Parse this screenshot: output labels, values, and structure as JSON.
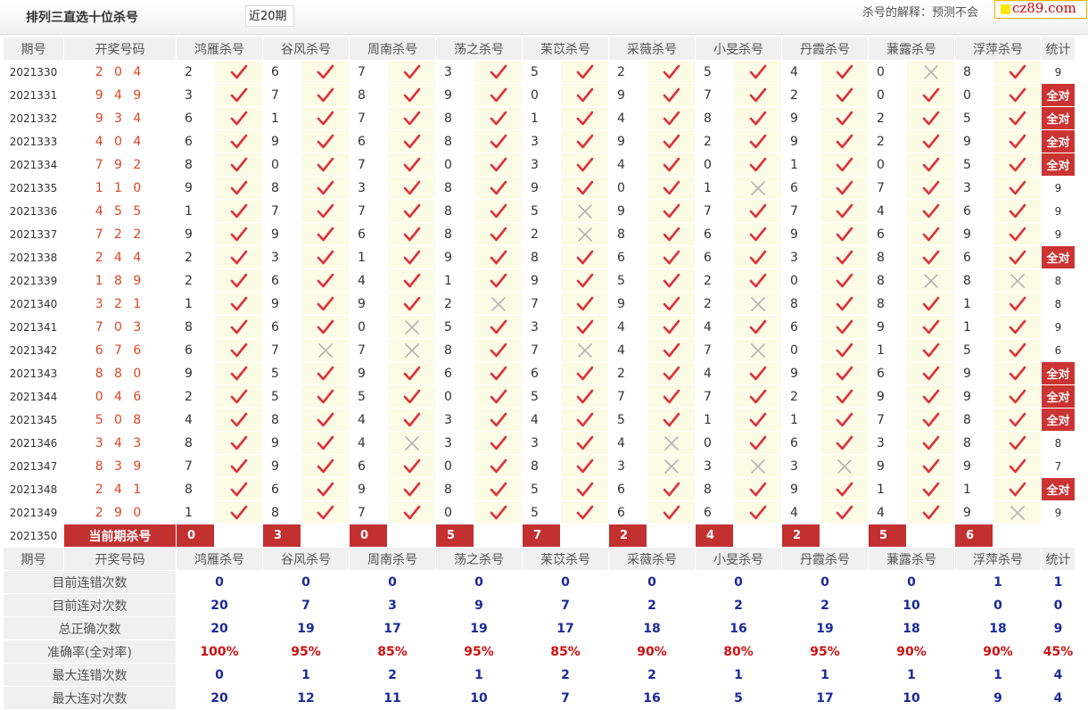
{
  "header": {
    "title": "排列三直选十位杀号",
    "period_select": "近20期",
    "explain": "杀号的解释：预测不会",
    "logo": "cz89.com"
  },
  "columns": {
    "issue": "期号",
    "draw": "开奖号码",
    "experts": [
      "鸿雁杀号",
      "谷风杀号",
      "周南杀号",
      "荡之杀号",
      "苿苡杀号",
      "采薇杀号",
      "小旻杀号",
      "丹霞杀号",
      "蒹露杀号",
      "浮萍杀号"
    ],
    "stat": "统计"
  },
  "rows": [
    {
      "issue": "2021330",
      "draw": "2 0 4",
      "kills": [
        2,
        6,
        7,
        3,
        5,
        2,
        5,
        4,
        0,
        8
      ],
      "ok": [
        1,
        1,
        1,
        1,
        1,
        1,
        1,
        1,
        0,
        1
      ],
      "stat": "9"
    },
    {
      "issue": "2021331",
      "draw": "9 4 9",
      "kills": [
        3,
        7,
        8,
        9,
        0,
        9,
        7,
        2,
        0,
        0
      ],
      "ok": [
        1,
        1,
        1,
        1,
        1,
        1,
        1,
        1,
        1,
        1
      ],
      "stat": "全对"
    },
    {
      "issue": "2021332",
      "draw": "9 3 4",
      "kills": [
        6,
        1,
        7,
        8,
        1,
        4,
        8,
        9,
        2,
        5
      ],
      "ok": [
        1,
        1,
        1,
        1,
        1,
        1,
        1,
        1,
        1,
        1
      ],
      "stat": "全对"
    },
    {
      "issue": "2021333",
      "draw": "4 0 4",
      "kills": [
        6,
        9,
        6,
        8,
        3,
        9,
        2,
        9,
        2,
        9
      ],
      "ok": [
        1,
        1,
        1,
        1,
        1,
        1,
        1,
        1,
        1,
        1
      ],
      "stat": "全对"
    },
    {
      "issue": "2021334",
      "draw": "7 9 2",
      "kills": [
        8,
        0,
        7,
        0,
        3,
        4,
        0,
        1,
        0,
        5
      ],
      "ok": [
        1,
        1,
        1,
        1,
        1,
        1,
        1,
        1,
        1,
        1
      ],
      "stat": "全对"
    },
    {
      "issue": "2021335",
      "draw": "1 1 0",
      "kills": [
        9,
        8,
        3,
        8,
        9,
        0,
        1,
        6,
        7,
        3
      ],
      "ok": [
        1,
        1,
        1,
        1,
        1,
        1,
        0,
        1,
        1,
        1
      ],
      "stat": "9"
    },
    {
      "issue": "2021336",
      "draw": "4 5 5",
      "kills": [
        1,
        7,
        7,
        8,
        5,
        9,
        7,
        7,
        4,
        6
      ],
      "ok": [
        1,
        1,
        1,
        1,
        0,
        1,
        1,
        1,
        1,
        1
      ],
      "stat": "9"
    },
    {
      "issue": "2021337",
      "draw": "7 2 2",
      "kills": [
        9,
        9,
        6,
        8,
        2,
        8,
        6,
        9,
        6,
        9
      ],
      "ok": [
        1,
        1,
        1,
        1,
        0,
        1,
        1,
        1,
        1,
        1
      ],
      "stat": "9"
    },
    {
      "issue": "2021338",
      "draw": "2 4 4",
      "kills": [
        2,
        3,
        1,
        9,
        8,
        6,
        6,
        3,
        8,
        6
      ],
      "ok": [
        1,
        1,
        1,
        1,
        1,
        1,
        1,
        1,
        1,
        1
      ],
      "stat": "全对"
    },
    {
      "issue": "2021339",
      "draw": "1 8 9",
      "kills": [
        2,
        6,
        4,
        1,
        9,
        5,
        2,
        0,
        8,
        8
      ],
      "ok": [
        1,
        1,
        1,
        1,
        1,
        1,
        1,
        1,
        0,
        0
      ],
      "stat": "8"
    },
    {
      "issue": "2021340",
      "draw": "3 2 1",
      "kills": [
        1,
        9,
        9,
        2,
        7,
        9,
        2,
        8,
        8,
        1
      ],
      "ok": [
        1,
        1,
        1,
        0,
        1,
        1,
        0,
        1,
        1,
        1
      ],
      "stat": "8"
    },
    {
      "issue": "2021341",
      "draw": "7 0 3",
      "kills": [
        8,
        6,
        0,
        5,
        3,
        4,
        4,
        6,
        9,
        1
      ],
      "ok": [
        1,
        1,
        0,
        1,
        1,
        1,
        1,
        1,
        1,
        1
      ],
      "stat": "9"
    },
    {
      "issue": "2021342",
      "draw": "6 7 6",
      "kills": [
        6,
        7,
        7,
        8,
        7,
        4,
        7,
        0,
        1,
        5
      ],
      "ok": [
        1,
        0,
        0,
        1,
        0,
        1,
        0,
        1,
        1,
        1
      ],
      "stat": "6"
    },
    {
      "issue": "2021343",
      "draw": "8 8 0",
      "kills": [
        9,
        5,
        9,
        6,
        6,
        2,
        4,
        9,
        6,
        9
      ],
      "ok": [
        1,
        1,
        1,
        1,
        1,
        1,
        1,
        1,
        1,
        1
      ],
      "stat": "全对"
    },
    {
      "issue": "2021344",
      "draw": "0 4 6",
      "kills": [
        2,
        5,
        5,
        0,
        5,
        7,
        7,
        2,
        9,
        9
      ],
      "ok": [
        1,
        1,
        1,
        1,
        1,
        1,
        1,
        1,
        1,
        1
      ],
      "stat": "全对"
    },
    {
      "issue": "2021345",
      "draw": "5 0 8",
      "kills": [
        4,
        8,
        4,
        3,
        4,
        5,
        1,
        1,
        7,
        8
      ],
      "ok": [
        1,
        1,
        1,
        1,
        1,
        1,
        1,
        1,
        1,
        1
      ],
      "stat": "全对"
    },
    {
      "issue": "2021346",
      "draw": "3 4 3",
      "kills": [
        8,
        9,
        4,
        3,
        3,
        4,
        0,
        6,
        3,
        8
      ],
      "ok": [
        1,
        1,
        0,
        1,
        1,
        0,
        1,
        1,
        1,
        1
      ],
      "stat": "8"
    },
    {
      "issue": "2021347",
      "draw": "8 3 9",
      "kills": [
        7,
        9,
        6,
        0,
        8,
        3,
        3,
        3,
        9,
        9
      ],
      "ok": [
        1,
        1,
        1,
        1,
        1,
        0,
        0,
        0,
        1,
        1
      ],
      "stat": "7"
    },
    {
      "issue": "2021348",
      "draw": "2 4 1",
      "kills": [
        8,
        6,
        9,
        8,
        5,
        6,
        8,
        9,
        1,
        1
      ],
      "ok": [
        1,
        1,
        1,
        1,
        1,
        1,
        1,
        1,
        1,
        1
      ],
      "stat": "全对"
    },
    {
      "issue": "2021349",
      "draw": "2 9 0",
      "kills": [
        1,
        8,
        7,
        0,
        5,
        6,
        6,
        4,
        4,
        9
      ],
      "ok": [
        1,
        1,
        1,
        1,
        1,
        1,
        1,
        1,
        1,
        0
      ],
      "stat": "9"
    }
  ],
  "current": {
    "issue": "2021350",
    "label": "当前期杀号",
    "kills": [
      "0",
      "3",
      "0",
      "5",
      "7",
      "2",
      "4",
      "2",
      "5",
      "6"
    ]
  },
  "summary": [
    {
      "label": "目前连错次数",
      "values": [
        "0",
        "0",
        "0",
        "0",
        "0",
        "0",
        "0",
        "0",
        "0",
        "1",
        "1"
      ],
      "red": false
    },
    {
      "label": "目前连对次数",
      "values": [
        "20",
        "7",
        "3",
        "9",
        "7",
        "2",
        "2",
        "2",
        "10",
        "0",
        "0"
      ],
      "red": false
    },
    {
      "label": "总正确次数",
      "values": [
        "20",
        "19",
        "17",
        "19",
        "17",
        "18",
        "16",
        "19",
        "18",
        "18",
        "9"
      ],
      "red": false
    },
    {
      "label": "准确率(全对率)",
      "values": [
        "100%",
        "95%",
        "85%",
        "95%",
        "85%",
        "90%",
        "80%",
        "95%",
        "90%",
        "90%",
        "45%"
      ],
      "red": true
    },
    {
      "label": "最大连错次数",
      "values": [
        "0",
        "1",
        "2",
        "1",
        "2",
        "2",
        "1",
        "1",
        "1",
        "1",
        "4"
      ],
      "red": false
    },
    {
      "label": "最大连对次数",
      "values": [
        "20",
        "12",
        "11",
        "10",
        "7",
        "16",
        "5",
        "17",
        "10",
        "9",
        "4"
      ],
      "red": false
    }
  ],
  "colors": {
    "check": "#e0303a",
    "cross": "#b5b5b5",
    "red_cell": "#c23030",
    "value_blue": "#1a2a9c",
    "value_red": "#cc1111"
  },
  "icons": {
    "correct": "check-icon",
    "wrong": "cross-icon"
  }
}
